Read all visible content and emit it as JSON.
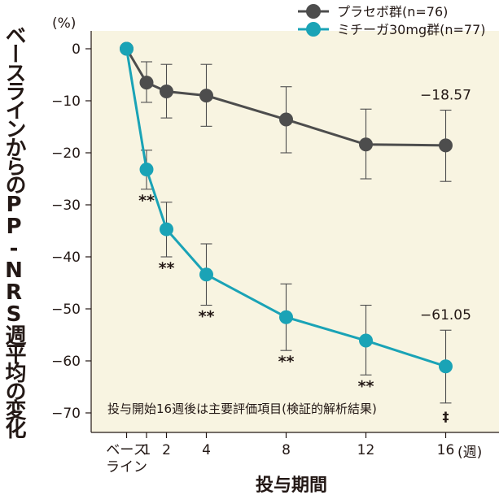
{
  "chart_data": {
    "type": "line",
    "y_unit": "(%)",
    "ylabel": "ベースラインからのPP-NRS週平均の変化率",
    "xlabel": "投与期間",
    "x_unit": "(週)",
    "ylim": [
      -70,
      0
    ],
    "yticks": [
      0,
      -10,
      -20,
      -30,
      -40,
      -50,
      -60,
      -70
    ],
    "x_positions": [
      0,
      1,
      2,
      4,
      8,
      12,
      16
    ],
    "x_tick_labels": [
      "ベース\nライン",
      "1",
      "2",
      "4",
      "8",
      "12",
      "16"
    ],
    "grid": false,
    "background": "#f8f4e1",
    "legend_position": "top-right",
    "series": [
      {
        "name": "プラセボ群(n=76)",
        "color": "#4d4d4d",
        "x": [
          0,
          1,
          2,
          4,
          8,
          12,
          16
        ],
        "values": [
          0,
          -6.5,
          -8.2,
          -9.0,
          -13.6,
          -18.4,
          -18.57
        ],
        "err_low": [
          0,
          -10.3,
          -13.3,
          -14.9,
          -20.0,
          -25.0,
          -25.5
        ],
        "err_high": [
          0,
          -2.5,
          -3.0,
          -3.0,
          -7.3,
          -11.6,
          -11.8
        ],
        "end_label": "−18.57"
      },
      {
        "name": "ミチーガ30mg群(n=77)",
        "color": "#1aa3b6",
        "x": [
          0,
          1,
          2,
          4,
          8,
          12,
          16
        ],
        "values": [
          0,
          -23.2,
          -34.7,
          -43.4,
          -51.6,
          -56.1,
          -61.05
        ],
        "err_low": [
          0,
          -27.0,
          -40.0,
          -49.3,
          -58.0,
          -62.7,
          -68.1
        ],
        "err_high": [
          0,
          -19.5,
          -29.5,
          -37.5,
          -45.2,
          -49.3,
          -54.1
        ],
        "end_label": "−61.05",
        "significance": [
          "",
          "**",
          "**",
          "**",
          "**",
          "**",
          "‡"
        ]
      }
    ],
    "annotation": "投与開始16週後は主要評価項目(検証的解析結果)"
  }
}
